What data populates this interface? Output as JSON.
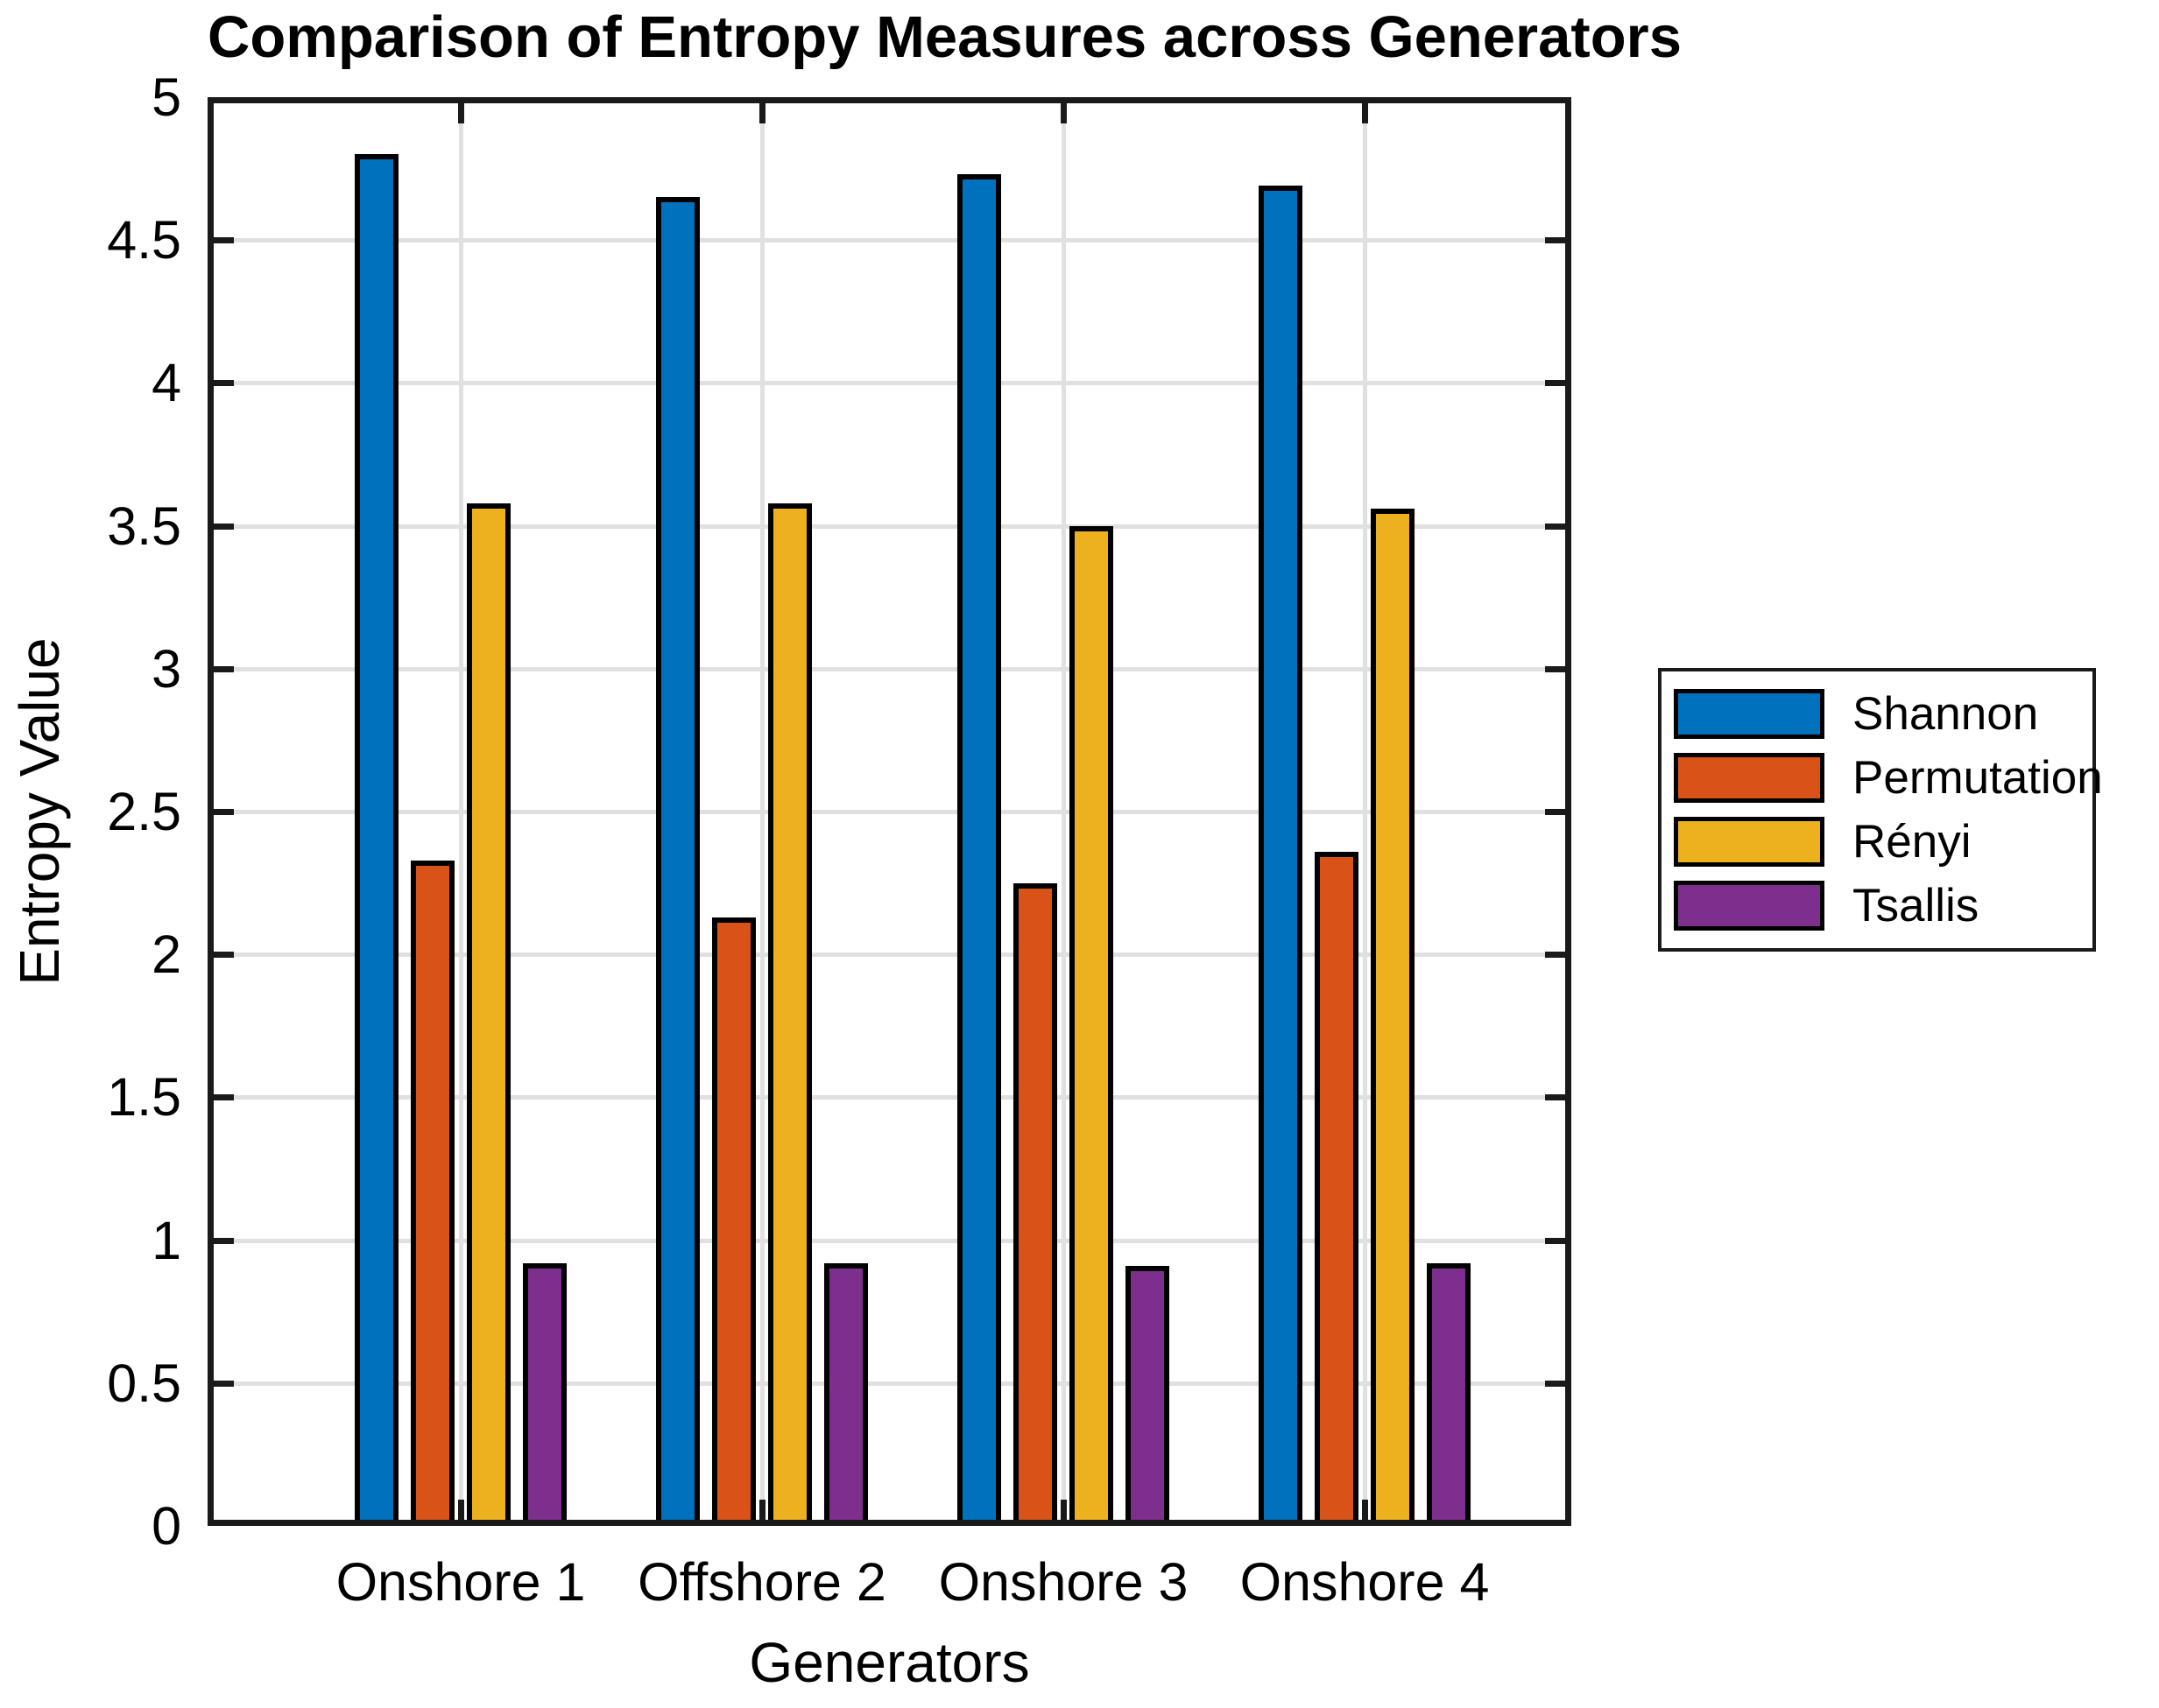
{
  "chart_data": {
    "type": "bar",
    "title": "Comparison of Entropy Measures across Generators",
    "xlabel": "Generators",
    "ylabel": "Entropy Value",
    "categories": [
      "Onshore 1",
      "Offshore 2",
      "Onshore 3",
      "Onshore 4"
    ],
    "series": [
      {
        "name": "Shannon",
        "color": "#0072BD",
        "values": [
          4.8,
          4.65,
          4.73,
          4.69
        ]
      },
      {
        "name": "Permutation",
        "color": "#D95319",
        "values": [
          2.33,
          2.13,
          2.25,
          2.36
        ]
      },
      {
        "name": "Rényi",
        "color": "#EDB120",
        "values": [
          3.58,
          3.58,
          3.5,
          3.56
        ]
      },
      {
        "name": "Tsallis",
        "color": "#7E2F8E",
        "values": [
          0.92,
          0.92,
          0.91,
          0.92
        ]
      }
    ],
    "ylim": [
      0,
      5
    ],
    "ytick_step": 0.5,
    "ytick_labels": [
      "0",
      "0.5",
      "1",
      "1.5",
      "2",
      "2.5",
      "3",
      "3.5",
      "4",
      "4.5",
      "5"
    ],
    "grid": true,
    "legend_position": "right-outside",
    "colors": {
      "axis": "#1a1a1a",
      "grid": "#E0E0E0",
      "bar_edge": "#000000",
      "background": "#FFFFFF"
    }
  }
}
